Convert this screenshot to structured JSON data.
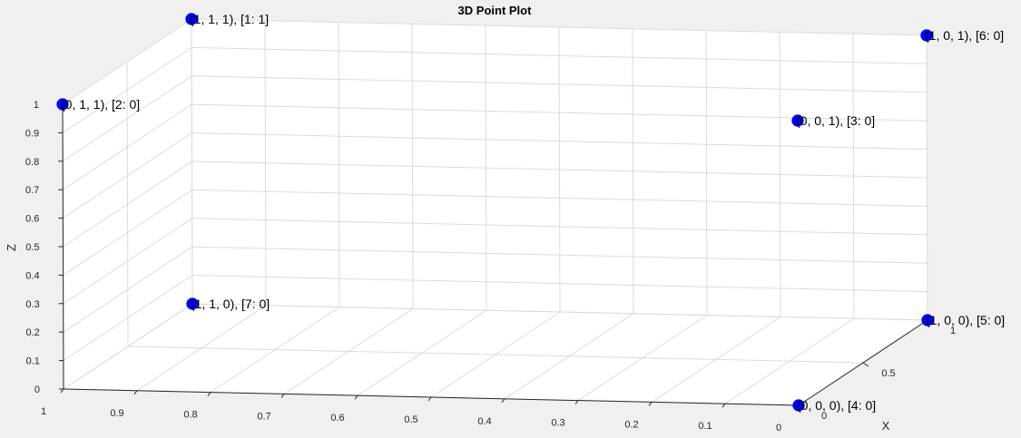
{
  "chart_data": {
    "type": "scatter3d",
    "title": "3D Point Plot",
    "xlabel": "X",
    "ylabel": "",
    "zlabel": "Z",
    "xlim": [
      0,
      1
    ],
    "ylim": [
      0,
      1
    ],
    "zlim": [
      0,
      1
    ],
    "grid": true,
    "marker_color": "#0000ff",
    "axis_color": "#262626",
    "grid_color": "#dcdcdc",
    "ticks": {
      "y_front": [
        "1",
        "0.9",
        "0.8",
        "0.7",
        "0.6",
        "0.5",
        "0.4",
        "0.3",
        "0.2",
        "0.1",
        "0"
      ],
      "x_right": [
        "0",
        "0.5",
        "1"
      ],
      "z_left": [
        "0",
        "0.1",
        "0.2",
        "0.3",
        "0.4",
        "0.5",
        "0.6",
        "0.7",
        "0.8",
        "0.9",
        "1"
      ]
    },
    "points": [
      {
        "x": 1,
        "y": 1,
        "z": 1,
        "label": "(1, 1, 1), [1: 1]"
      },
      {
        "x": 0,
        "y": 1,
        "z": 1,
        "label": "(0, 1, 1), [2: 0]"
      },
      {
        "x": 0,
        "y": 0,
        "z": 1,
        "label": "(0, 0, 1), [3: 0]"
      },
      {
        "x": 0,
        "y": 0,
        "z": 0,
        "label": "(0, 0, 0), [4: 0]"
      },
      {
        "x": 1,
        "y": 0,
        "z": 0,
        "label": "(1, 0, 0), [5: 0]"
      },
      {
        "x": 1,
        "y": 0,
        "z": 1,
        "label": "(1, 0, 1), [6: 0]"
      },
      {
        "x": 1,
        "y": 1,
        "z": 0,
        "label": "(1, 1, 0), [7: 0]"
      }
    ]
  }
}
